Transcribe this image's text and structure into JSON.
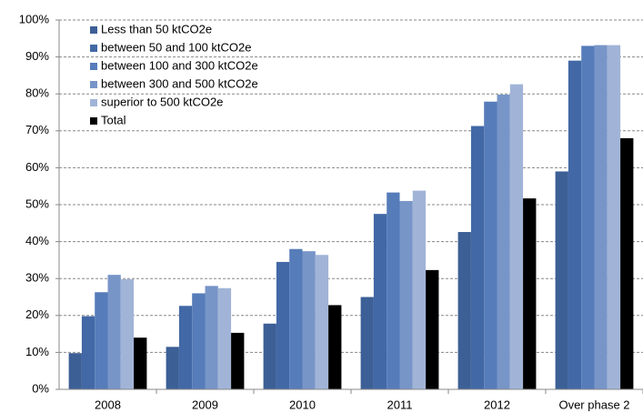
{
  "chart_data": {
    "type": "bar",
    "categories": [
      "2008",
      "2009",
      "2010",
      "2011",
      "2012",
      "Over phase 2"
    ],
    "series": [
      {
        "name": "Less than 50 ktCO2e",
        "color": "#3c5f96",
        "values": [
          9.8,
          11.5,
          17.8,
          25,
          42.6,
          59
        ]
      },
      {
        "name": "between 50 and 100 ktCO2e",
        "color": "#4268a6",
        "values": [
          19.8,
          22.6,
          34.5,
          47.5,
          71.3,
          89
        ]
      },
      {
        "name": "between 100 and 300 ktCO2e",
        "color": "#567cb9",
        "values": [
          26.3,
          26,
          38,
          53.3,
          77.9,
          93
        ]
      },
      {
        "name": "between 300 and 500 ktCO2e",
        "color": "#7895c8",
        "values": [
          31,
          28,
          37.4,
          51,
          79.8,
          93.2
        ]
      },
      {
        "name": "superior to 500 ktCO2e",
        "color": "#a1b4d7",
        "values": [
          29.8,
          27.4,
          36.4,
          53.8,
          82.6,
          93.2
        ]
      },
      {
        "name": "Total",
        "color": "#000000",
        "values": [
          14,
          15.3,
          22.8,
          32.3,
          51.7,
          68
        ]
      }
    ],
    "ylim": [
      0,
      100
    ],
    "yticks": [
      {
        "value": 0,
        "label": "0%"
      },
      {
        "value": 10,
        "label": "10%"
      },
      {
        "value": 20,
        "label": "20%"
      },
      {
        "value": 30,
        "label": "30%"
      },
      {
        "value": 40,
        "label": "40%"
      },
      {
        "value": 50,
        "label": "50%"
      },
      {
        "value": 60,
        "label": "60%"
      },
      {
        "value": 70,
        "label": "70%"
      },
      {
        "value": 80,
        "label": "80%"
      },
      {
        "value": 90,
        "label": "90%"
      },
      {
        "value": 100,
        "label": "100%"
      }
    ],
    "grid": true,
    "legend": "top-left"
  }
}
